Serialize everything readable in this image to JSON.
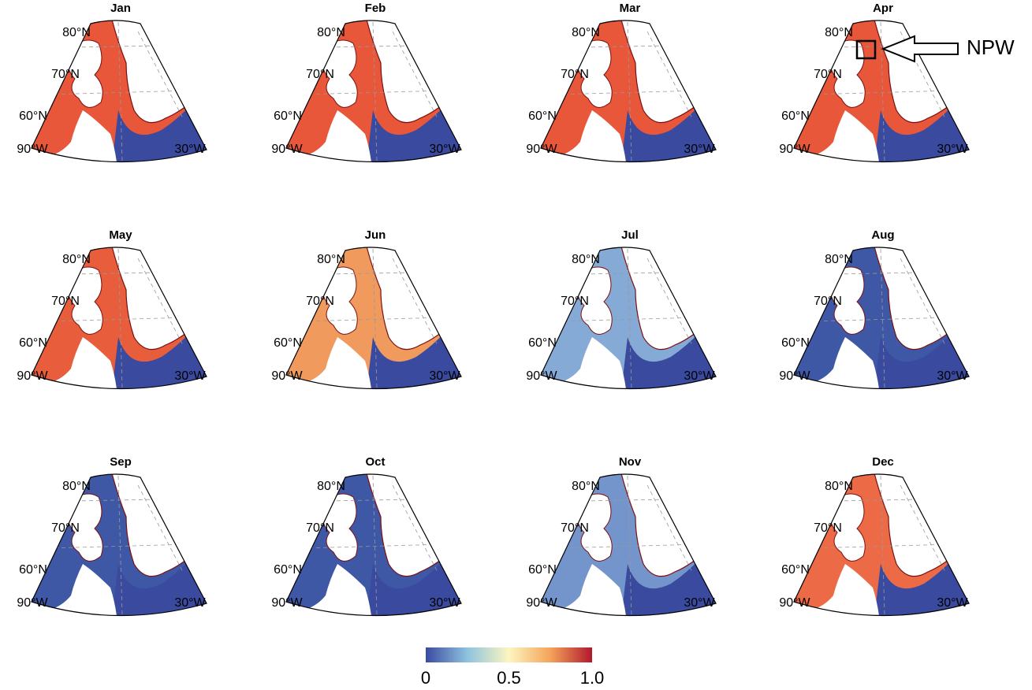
{
  "panels": [
    {
      "title": "Jan",
      "ice_color": "#e8573a"
    },
    {
      "title": "Feb",
      "ice_color": "#e8573a"
    },
    {
      "title": "Mar",
      "ice_color": "#e8573a"
    },
    {
      "title": "Apr",
      "ice_color": "#e8573a"
    },
    {
      "title": "May",
      "ice_color": "#e85e3c"
    },
    {
      "title": "Jun",
      "ice_color": "#f09a5e"
    },
    {
      "title": "Jul",
      "ice_color": "#86aad6"
    },
    {
      "title": "Aug",
      "ice_color": "#3f58a6"
    },
    {
      "title": "Sep",
      "ice_color": "#3f58a6"
    },
    {
      "title": "Oct",
      "ice_color": "#3f58a6"
    },
    {
      "title": "Nov",
      "ice_color": "#7395cc"
    },
    {
      "title": "Dec",
      "ice_color": "#ec6a45"
    }
  ],
  "ocean_color": "#3a4a9f",
  "lat_labels": [
    "80°N",
    "70°N",
    "60°N"
  ],
  "lon_labels": [
    "90°W",
    "30°W"
  ],
  "annotation": "NPW",
  "colorbar": {
    "range": [
      0,
      1
    ],
    "ticks": [
      0,
      0.5,
      {
        "value": 1,
        "label": "1.0"
      }
    ],
    "colors": [
      "#3a4a9f",
      "#8fc3e0",
      "#fdf6c0",
      "#f4a35a",
      "#b2182b"
    ]
  }
}
